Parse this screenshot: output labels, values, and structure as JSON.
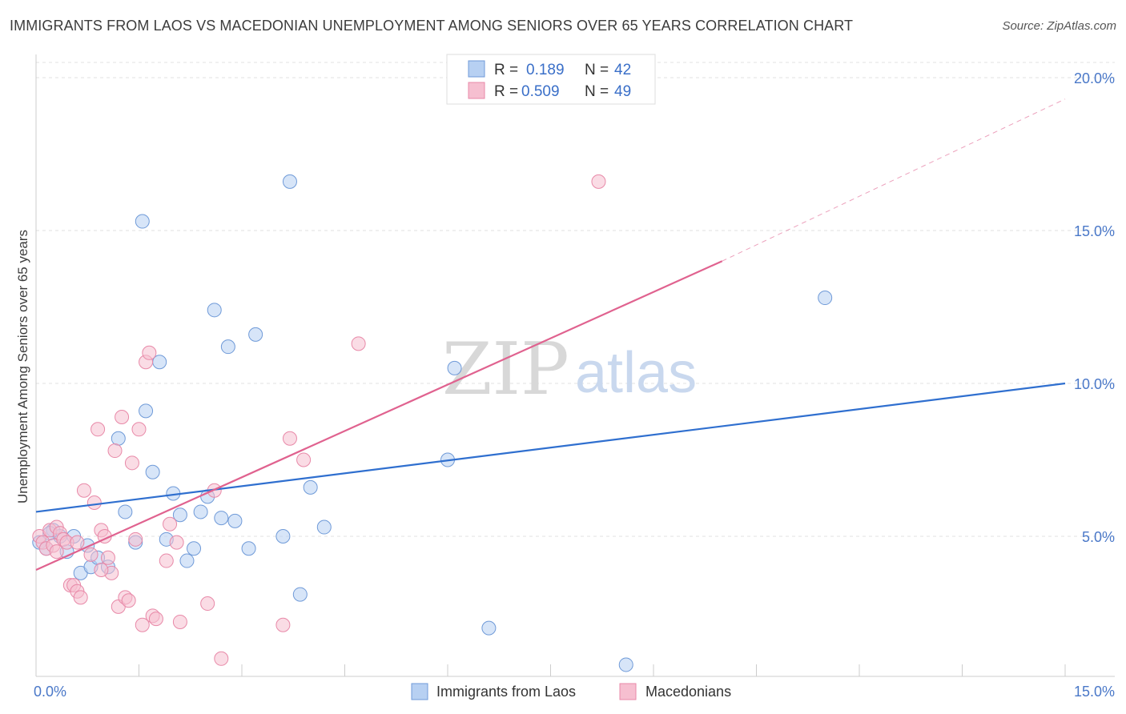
{
  "title": "IMMIGRANTS FROM LAOS VS MACEDONIAN UNEMPLOYMENT AMONG SENIORS OVER 65 YEARS CORRELATION CHART",
  "source": "Source: ZipAtlas.com",
  "watermark": {
    "zip": "ZIP",
    "atlas": "atlas"
  },
  "colors": {
    "blue_fill": "#b7d0f2",
    "blue_stroke": "#6f9ad8",
    "blue_line": "#2f6fcf",
    "pink_fill": "#f6bfd0",
    "pink_stroke": "#e889a8",
    "pink_line": "#e0628f"
  },
  "legend": {
    "rows": [
      {
        "r_label": "R =",
        "r_value": "0.189",
        "n_label": "N =",
        "n_value": "42"
      },
      {
        "r_label": "R =",
        "r_value": "0.509",
        "n_label": "N =",
        "n_value": "49"
      }
    ]
  },
  "chart_data": {
    "type": "scatter",
    "title": "IMMIGRANTS FROM LAOS VS MACEDONIAN UNEMPLOYMENT AMONG SENIORS OVER 65 YEARS CORRELATION CHART",
    "xlabel": "",
    "ylabel": "Unemployment Among Seniors over 65 years",
    "xlim": [
      0,
      15
    ],
    "ylim": [
      0,
      20
    ],
    "x_tick_labels": [
      "0.0%",
      "15.0%"
    ],
    "y_ticks": [
      5,
      10,
      15,
      20
    ],
    "y_tick_labels": [
      "5.0%",
      "10.0%",
      "15.0%",
      "20.0%"
    ],
    "series": [
      {
        "name": "Immigrants from Laos",
        "R": 0.189,
        "N": 42,
        "trend": {
          "x0": 0,
          "y0": 5.8,
          "x1": 15,
          "y1": 10.0
        },
        "points": [
          [
            0.05,
            4.8
          ],
          [
            0.15,
            4.6
          ],
          [
            0.25,
            5.2
          ],
          [
            0.35,
            5.0
          ],
          [
            0.45,
            4.5
          ],
          [
            0.55,
            5.0
          ],
          [
            0.65,
            3.8
          ],
          [
            0.75,
            4.7
          ],
          [
            0.8,
            4.0
          ],
          [
            0.9,
            4.3
          ],
          [
            1.05,
            4.0
          ],
          [
            1.2,
            8.2
          ],
          [
            1.3,
            5.8
          ],
          [
            1.45,
            4.8
          ],
          [
            1.55,
            15.3
          ],
          [
            1.6,
            9.1
          ],
          [
            1.7,
            7.1
          ],
          [
            1.8,
            10.7
          ],
          [
            1.9,
            4.9
          ],
          [
            2.0,
            6.4
          ],
          [
            2.1,
            5.7
          ],
          [
            2.2,
            4.2
          ],
          [
            2.3,
            4.6
          ],
          [
            2.4,
            5.8
          ],
          [
            2.5,
            6.3
          ],
          [
            2.6,
            12.4
          ],
          [
            2.7,
            5.6
          ],
          [
            2.8,
            11.2
          ],
          [
            2.9,
            5.5
          ],
          [
            3.1,
            4.6
          ],
          [
            3.2,
            11.6
          ],
          [
            3.6,
            5.0
          ],
          [
            3.7,
            16.6
          ],
          [
            3.85,
            3.1
          ],
          [
            4.0,
            6.6
          ],
          [
            4.2,
            5.3
          ],
          [
            6.0,
            7.5
          ],
          [
            6.1,
            10.5
          ],
          [
            6.6,
            2.0
          ],
          [
            8.6,
            0.8
          ],
          [
            11.5,
            12.8
          ],
          [
            0.2,
            5.1
          ]
        ]
      },
      {
        "name": "Macedonians",
        "R": 0.509,
        "N": 49,
        "trend": {
          "x0": 0,
          "y0": 3.9,
          "x1": 10.0,
          "y1": 14.0,
          "dash_x1": 15,
          "dash_y1": 19.3
        },
        "points": [
          [
            0.05,
            5.0
          ],
          [
            0.1,
            4.8
          ],
          [
            0.15,
            4.6
          ],
          [
            0.2,
            5.2
          ],
          [
            0.25,
            4.7
          ],
          [
            0.3,
            5.3
          ],
          [
            0.35,
            5.1
          ],
          [
            0.4,
            4.9
          ],
          [
            0.45,
            4.8
          ],
          [
            0.5,
            3.4
          ],
          [
            0.55,
            3.4
          ],
          [
            0.6,
            3.2
          ],
          [
            0.65,
            3.0
          ],
          [
            0.7,
            6.5
          ],
          [
            0.8,
            4.4
          ],
          [
            0.85,
            6.1
          ],
          [
            0.9,
            8.5
          ],
          [
            0.95,
            5.2
          ],
          [
            1.0,
            5.0
          ],
          [
            1.05,
            4.3
          ],
          [
            1.1,
            3.8
          ],
          [
            1.15,
            7.8
          ],
          [
            1.2,
            2.7
          ],
          [
            1.25,
            8.9
          ],
          [
            1.3,
            3.0
          ],
          [
            1.35,
            2.9
          ],
          [
            1.4,
            7.4
          ],
          [
            1.45,
            4.9
          ],
          [
            1.5,
            8.5
          ],
          [
            1.55,
            2.1
          ],
          [
            1.6,
            10.7
          ],
          [
            1.65,
            11.0
          ],
          [
            1.7,
            2.4
          ],
          [
            1.75,
            2.3
          ],
          [
            1.9,
            4.2
          ],
          [
            1.95,
            5.4
          ],
          [
            2.1,
            2.2
          ],
          [
            2.5,
            2.8
          ],
          [
            2.6,
            6.5
          ],
          [
            2.7,
            1.0
          ],
          [
            3.6,
            2.1
          ],
          [
            3.7,
            8.2
          ],
          [
            3.9,
            7.5
          ],
          [
            4.7,
            11.3
          ],
          [
            8.2,
            16.6
          ],
          [
            0.3,
            4.5
          ],
          [
            0.6,
            4.8
          ],
          [
            0.95,
            3.9
          ],
          [
            2.05,
            4.8
          ]
        ]
      }
    ],
    "bottom_legend": [
      "Immigrants from Laos",
      "Macedonians"
    ]
  }
}
